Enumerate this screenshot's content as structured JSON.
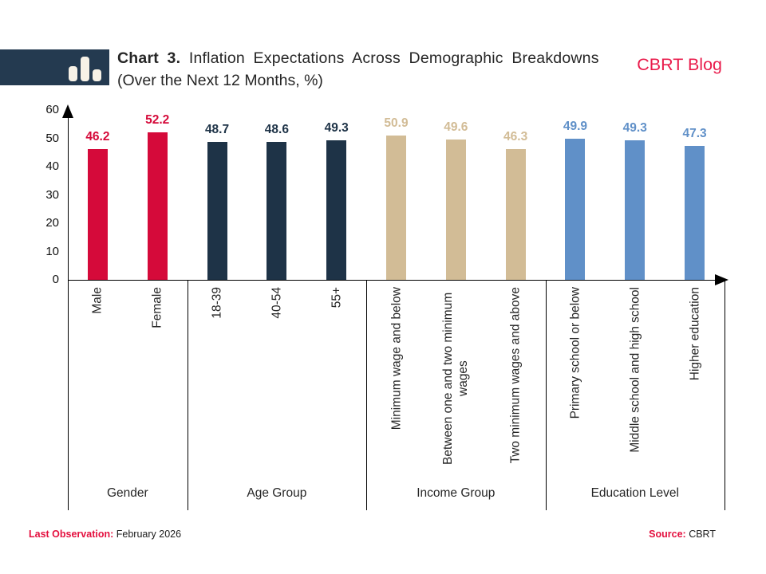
{
  "header": {
    "title_prefix": "Chart 3.",
    "title_rest": "Inflation Expectations Across Demographic Breakdowns",
    "subtitle": "(Over the Next 12 Months, %)",
    "brand": "CBRT Blog"
  },
  "chart_data": {
    "type": "bar",
    "title": "Chart 3. Inflation Expectations Across Demographic Breakdowns (Over the Next 12 Months, %)",
    "ylabel": "",
    "xlabel": "",
    "ylim": [
      0,
      60
    ],
    "yticks": [
      0,
      10,
      20,
      30,
      40,
      50,
      60
    ],
    "grid": false,
    "value_labels_shown": true,
    "groups": [
      {
        "label": "Gender",
        "color": "#d50a3a",
        "categories": [
          "Male",
          "Female"
        ],
        "values": [
          46.2,
          52.2
        ]
      },
      {
        "label": "Age Group",
        "color": "#1e3347",
        "categories": [
          "18-39",
          "40-54",
          "55+"
        ],
        "values": [
          48.7,
          48.6,
          49.3
        ]
      },
      {
        "label": "Income Group",
        "color": "#d2bc96",
        "categories": [
          "Minimum wage and below",
          "Between one and two minimum wages",
          "Two minimum wages and above"
        ],
        "values": [
          50.9,
          49.6,
          46.3
        ]
      },
      {
        "label": "Education Level",
        "color": "#6090c8",
        "categories": [
          "Primary school or below",
          "Middle school and high school",
          "Higher education"
        ],
        "values": [
          49.9,
          49.3,
          47.3
        ]
      }
    ]
  },
  "footer": {
    "left_label": "Last Observation:",
    "left_value": "February 2026",
    "right_label": "Source:",
    "right_value": "CBRT"
  },
  "colors": {
    "brand_red": "#e91c4c",
    "footer_red": "#e40f3e",
    "logo_navy": "#243a50",
    "logo_bar_cream": "#f7f2e7",
    "axis_black": "#000000"
  }
}
